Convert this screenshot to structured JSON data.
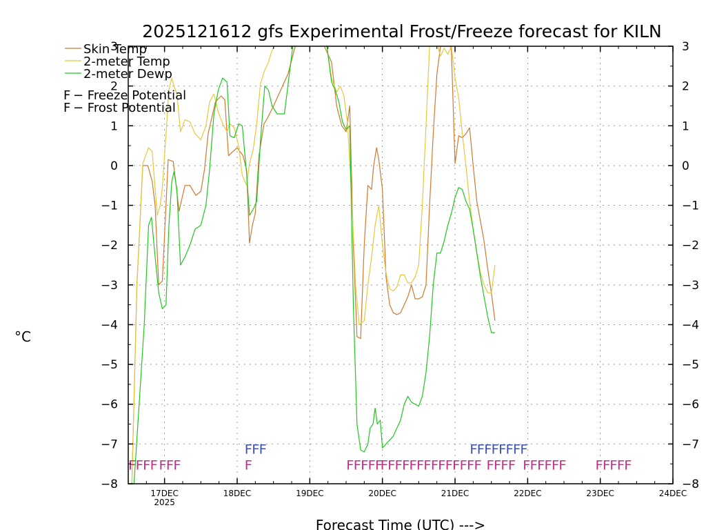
{
  "chart_data": {
    "type": "line",
    "title": "2025121612 gfs Experimental Frost/Freeze forecast for KILN",
    "xlabel": "Forecast Time (UTC) --->",
    "ylabel": "°C",
    "ylim": [
      -8,
      3
    ],
    "y_ticks": [
      "3",
      "2",
      "1",
      "0",
      "−1",
      "−2",
      "−3",
      "−4",
      "−5",
      "−6",
      "−7",
      "−8"
    ],
    "x_range_days": [
      0,
      7.5
    ],
    "x_ticks": [
      {
        "day": 0.5,
        "label": "17DEC",
        "sublabel": "2025"
      },
      {
        "day": 1.5,
        "label": "18DEC",
        "sublabel": ""
      },
      {
        "day": 2.5,
        "label": "19DEC",
        "sublabel": ""
      },
      {
        "day": 3.5,
        "label": "20DEC",
        "sublabel": ""
      },
      {
        "day": 4.5,
        "label": "21DEC",
        "sublabel": ""
      },
      {
        "day": 5.5,
        "label": "22DEC",
        "sublabel": ""
      },
      {
        "day": 6.5,
        "label": "23DEC",
        "sublabel": ""
      },
      {
        "day": 7.5,
        "label": "24DEC",
        "sublabel": ""
      }
    ],
    "x_units": "days after 16DEC 12Z",
    "colors": {
      "skin": "#d2782d",
      "temp": "#e6c83c",
      "dewp": "#1ec81e",
      "freeze": "#c8288c",
      "frost": "#3c50b4"
    },
    "series": [
      {
        "name": "Skin Temp",
        "color": "#d2782d",
        "x": [
          0.05,
          0.12,
          0.2,
          0.27,
          0.33,
          0.37,
          0.42,
          0.47,
          0.55,
          0.62,
          0.66,
          0.7,
          0.78,
          0.85,
          0.93,
          1.0,
          1.05,
          1.1,
          1.2,
          1.28,
          1.33,
          1.38,
          1.44,
          1.5,
          1.58,
          1.63,
          1.67,
          1.71,
          1.75,
          1.8,
          1.87,
          1.92,
          2.0,
          2.1,
          2.2,
          2.3,
          2.4,
          2.5,
          2.7,
          2.8,
          2.87,
          2.94,
          3.0,
          3.05,
          3.1,
          3.15,
          3.2,
          3.25,
          3.3,
          3.35,
          3.38,
          3.42,
          3.45,
          3.5,
          3.55,
          3.6,
          3.65,
          3.7,
          3.75,
          3.8,
          3.85,
          3.9,
          3.95,
          4.0,
          4.05,
          4.1,
          4.15,
          4.2,
          4.25,
          4.3,
          4.35,
          4.4,
          4.45,
          4.5,
          4.55,
          4.6,
          4.65,
          4.7,
          4.75,
          4.8,
          4.85,
          4.9,
          4.95,
          5.0,
          5.05
        ],
        "y": [
          -8,
          -3.0,
          0.0,
          0.0,
          -0.4,
          -1.0,
          -3.0,
          -2.9,
          0.15,
          0.1,
          -0.5,
          -1.15,
          -0.5,
          -0.5,
          -0.75,
          -0.65,
          -0.1,
          0.8,
          1.6,
          1.75,
          1.65,
          0.25,
          0.35,
          0.45,
          0.25,
          -0.1,
          -1.95,
          -1.5,
          -1.2,
          0.25,
          1.05,
          1.2,
          1.5,
          1.9,
          2.3,
          3.0,
          3.5,
          3.5,
          3.0,
          2.6,
          1.5,
          1.0,
          0.85,
          1.5,
          -2.0,
          -4.3,
          -4.35,
          -2.0,
          -0.5,
          -0.6,
          0.0,
          0.45,
          0.15,
          -0.6,
          -2.8,
          -3.5,
          -3.7,
          -3.75,
          -3.7,
          -3.5,
          -3.3,
          -3.0,
          -3.35,
          -3.35,
          -3.3,
          -3.0,
          -1.0,
          0.8,
          2.3,
          3.0,
          3.5,
          3.2,
          2.9,
          0.05,
          0.75,
          0.7,
          0.8,
          0.95,
          0.0,
          -0.9,
          -1.4,
          -1.9,
          -2.6,
          -3.2,
          -3.9
        ]
      },
      {
        "name": "2-meter Temp",
        "color": "#e6c83c",
        "x": [
          0.05,
          0.12,
          0.2,
          0.28,
          0.33,
          0.4,
          0.44,
          0.47,
          0.52,
          0.56,
          0.6,
          0.63,
          0.67,
          0.72,
          0.78,
          0.85,
          0.92,
          1.0,
          1.07,
          1.12,
          1.18,
          1.24,
          1.3,
          1.36,
          1.4,
          1.46,
          1.52,
          1.57,
          1.63,
          1.67,
          1.72,
          1.77,
          1.82,
          1.88,
          1.93,
          1.98,
          2.05,
          2.15,
          2.25,
          2.35,
          2.5,
          2.7,
          2.8,
          2.87,
          2.92,
          2.97,
          3.02,
          3.08,
          3.13,
          3.18,
          3.25,
          3.3,
          3.35,
          3.4,
          3.45,
          3.5,
          3.55,
          3.6,
          3.65,
          3.7,
          3.75,
          3.8,
          3.85,
          3.9,
          3.95,
          4.0,
          4.05,
          4.1,
          4.15,
          4.2,
          4.25,
          4.3,
          4.35,
          4.4,
          4.45,
          4.5,
          4.55,
          4.6,
          4.65,
          4.7,
          4.75,
          4.8,
          4.85,
          4.9,
          4.95,
          5.0,
          5.05
        ],
        "y": [
          -8,
          -3.0,
          0.05,
          0.45,
          0.35,
          -1.25,
          -1.0,
          -0.55,
          0.8,
          1.9,
          2.2,
          2.0,
          1.8,
          0.85,
          1.15,
          1.1,
          0.8,
          0.65,
          1.0,
          1.6,
          1.8,
          1.35,
          1.05,
          0.85,
          1.05,
          0.95,
          0.5,
          -0.25,
          -0.5,
          0.05,
          0.4,
          1.05,
          2.05,
          2.4,
          2.6,
          2.9,
          3.1,
          3.2,
          3.3,
          3.4,
          3.5,
          3.4,
          2.2,
          1.85,
          2.0,
          1.75,
          1.05,
          -0.9,
          -3.0,
          -4.0,
          -3.9,
          -3.0,
          -2.3,
          -1.5,
          -1.0,
          -2.0,
          -2.7,
          -3.1,
          -3.15,
          -3.05,
          -2.75,
          -2.75,
          -2.95,
          -2.95,
          -2.8,
          -2.5,
          -1.0,
          1.0,
          3.0,
          3.5,
          3.1,
          2.75,
          2.95,
          2.8,
          3.0,
          2.2,
          1.7,
          0.8,
          0.0,
          -0.9,
          -1.6,
          -2.2,
          -2.7,
          -3.0,
          -3.2,
          -3.2,
          -2.5
        ]
      },
      {
        "name": "2-meter Dewp",
        "color": "#1ec81e",
        "x": [
          0.08,
          0.15,
          0.22,
          0.28,
          0.32,
          0.37,
          0.42,
          0.47,
          0.52,
          0.56,
          0.6,
          0.63,
          0.67,
          0.72,
          0.78,
          0.85,
          0.92,
          1.0,
          1.07,
          1.12,
          1.18,
          1.24,
          1.3,
          1.36,
          1.4,
          1.46,
          1.52,
          1.57,
          1.63,
          1.67,
          1.72,
          1.77,
          1.82,
          1.88,
          1.93,
          1.98,
          2.05,
          2.15,
          2.3,
          2.5,
          2.7,
          2.8,
          2.85,
          2.9,
          2.95,
          3.0,
          3.05,
          3.1,
          3.15,
          3.2,
          3.25,
          3.3,
          3.33,
          3.37,
          3.4,
          3.43,
          3.47,
          3.5,
          3.55,
          3.6,
          3.65,
          3.7,
          3.75,
          3.8,
          3.85,
          3.9,
          3.95,
          4.0,
          4.05,
          4.1,
          4.15,
          4.2,
          4.25,
          4.3,
          4.35,
          4.4,
          4.45,
          4.5,
          4.55,
          4.6,
          4.65,
          4.7,
          4.75,
          4.8,
          4.85,
          4.9,
          4.95,
          5.0,
          5.05
        ],
        "y": [
          -8,
          -6.0,
          -4.0,
          -1.5,
          -1.3,
          -2.3,
          -3.2,
          -3.6,
          -3.5,
          -1.5,
          -0.4,
          -0.15,
          -0.6,
          -2.5,
          -2.3,
          -2.0,
          -1.6,
          -1.5,
          -1.0,
          -0.1,
          1.3,
          1.9,
          2.2,
          2.1,
          0.75,
          0.7,
          1.05,
          1.0,
          -0.2,
          -1.25,
          -1.1,
          -0.9,
          0.6,
          2.0,
          1.9,
          1.5,
          1.3,
          1.3,
          3.5,
          3.5,
          3.5,
          2.1,
          1.9,
          1.6,
          1.1,
          0.9,
          1.0,
          -3.5,
          -6.5,
          -7.15,
          -7.2,
          -7.0,
          -6.6,
          -6.5,
          -6.1,
          -6.5,
          -6.4,
          -7.1,
          -7.0,
          -6.9,
          -6.8,
          -6.6,
          -6.4,
          -6.0,
          -5.8,
          -5.95,
          -6.0,
          -6.05,
          -5.8,
          -5.2,
          -4.3,
          -3.0,
          -2.2,
          -2.2,
          -1.9,
          -1.5,
          -1.2,
          -0.8,
          -0.55,
          -0.6,
          -0.9,
          -1.1,
          -1.6,
          -2.2,
          -2.8,
          -3.3,
          -3.8,
          -4.2,
          -4.2
        ]
      }
    ],
    "legend": {
      "position": "top-left",
      "entries": [
        {
          "label": "Skin Temp",
          "color": "#d2782d"
        },
        {
          "label": "2-meter Temp",
          "color": "#e6c83c"
        },
        {
          "label": "2-meter Dewp",
          "color": "#1ec81e"
        }
      ],
      "markers": [
        {
          "symbol": "F",
          "label": " − Freeze Potential",
          "color": "#c8288c"
        },
        {
          "symbol": "F",
          "label": " − Frost Potential",
          "color": "#3c50b4"
        }
      ]
    },
    "freeze_markers": [
      {
        "text": "FFFF",
        "day": 0.0,
        "row": "low"
      },
      {
        "text": "FFF",
        "day": 0.42,
        "row": "low"
      },
      {
        "text": "F",
        "day": 1.6,
        "row": "low"
      },
      {
        "text": "FFFFF",
        "day": 3.0,
        "row": "low"
      },
      {
        "text": "FFFFFFFFFFFFFF",
        "day": 3.47,
        "row": "low"
      },
      {
        "text": "FFFF",
        "day": 4.93,
        "row": "low"
      },
      {
        "text": "FFFFFF",
        "day": 5.43,
        "row": "low"
      },
      {
        "text": "FFFFF",
        "day": 6.43,
        "row": "low"
      }
    ],
    "frost_markers": [
      {
        "text": "FFF",
        "day": 1.6,
        "row": "high"
      },
      {
        "text": "FFFFFFFF",
        "day": 4.7,
        "row": "high"
      }
    ]
  }
}
